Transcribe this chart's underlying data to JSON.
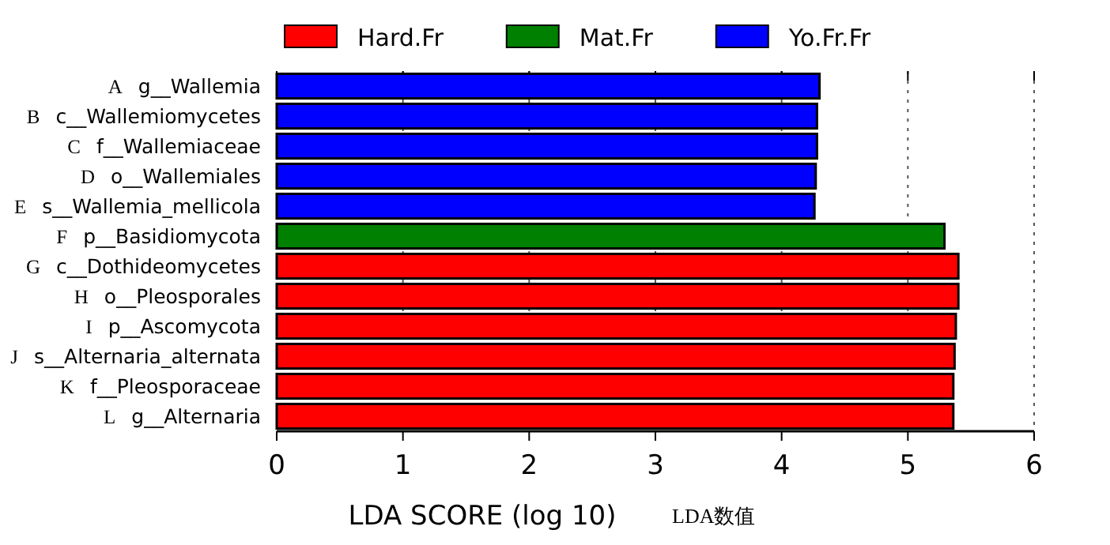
{
  "chart_data": {
    "type": "bar",
    "orientation": "horizontal",
    "xlabel": "LDA SCORE (log 10)",
    "categories": [
      "g__Wallemia",
      "c__Wallemiomycetes",
      "f__Wallemiaceae",
      "o__Wallemiales",
      "s__Wallemia_mellicola",
      "p__Basidiomycota",
      "c__Dothideomycetes",
      "o__Pleosporales",
      "p__Ascomycota",
      "s__Alternaria_alternata",
      "f__Pleosporaceae",
      "g__Alternaria"
    ],
    "series": [
      {
        "name": "Hard.Fr",
        "color": "#ff0000",
        "values": [
          null,
          null,
          null,
          null,
          null,
          null,
          5.4,
          5.4,
          5.38,
          5.37,
          5.36,
          5.36
        ]
      },
      {
        "name": "Mat.Fr",
        "color": "#008000",
        "values": [
          null,
          null,
          null,
          null,
          null,
          5.29,
          null,
          null,
          null,
          null,
          null,
          null
        ]
      },
      {
        "name": "Yo.Fr.Fr",
        "color": "#0000ff",
        "values": [
          4.3,
          4.28,
          4.28,
          4.27,
          4.26,
          null,
          null,
          null,
          null,
          null,
          null,
          null
        ]
      }
    ],
    "xlim": [
      0,
      6
    ],
    "xticks": [
      0,
      1,
      2,
      3,
      4,
      5,
      6
    ],
    "grid": "x",
    "legend": "top",
    "annotations": [
      "A",
      "B",
      "C",
      "D",
      "E",
      "F",
      "G",
      "H",
      "I",
      "J",
      "K",
      "L",
      "LDA数值"
    ]
  }
}
